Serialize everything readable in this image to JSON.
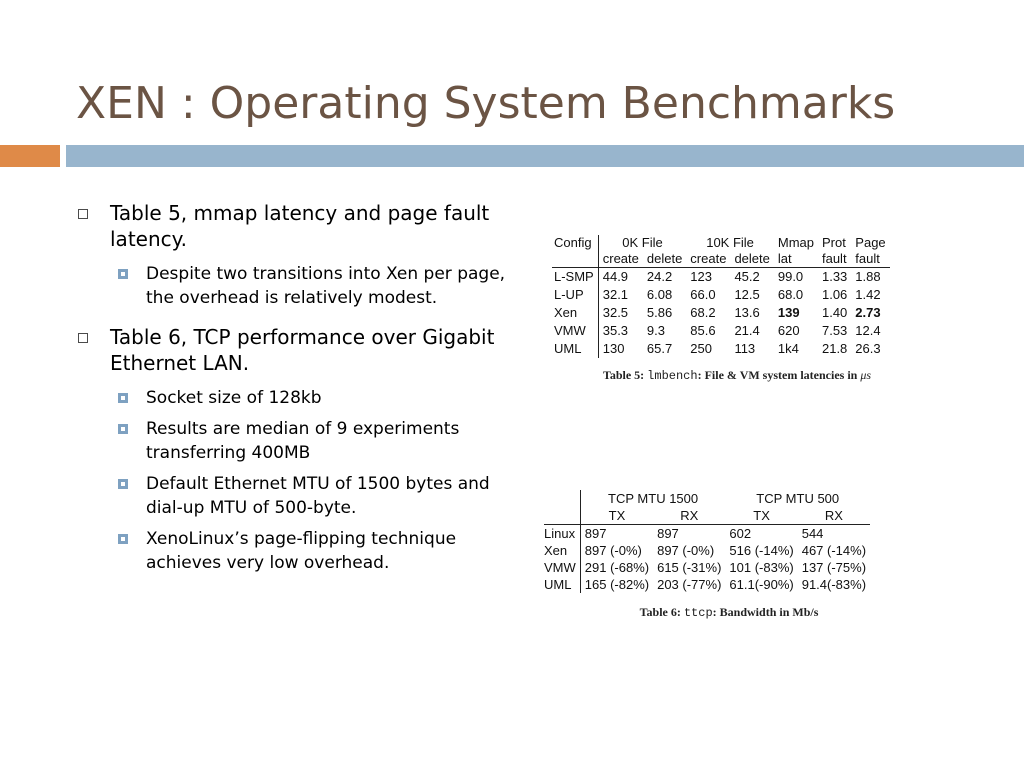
{
  "slide": {
    "title": "XEN : Operating System Benchmarks",
    "accent_orange": "#df8a48",
    "accent_blue": "#98b5cd",
    "title_color": "#6b5444"
  },
  "bullets": [
    {
      "text": "Table 5, mmap latency and page fault latency.",
      "sub": [
        "Despite two transitions into Xen per page, the overhead is relatively modest."
      ]
    },
    {
      "text": "Table 6, TCP performance over Gigabit Ethernet LAN.",
      "sub": [
        "Socket size of 128kb",
        "Results are median of 9 experiments transferring 400MB",
        "Default Ethernet MTU of 1500 bytes and dial-up MTU of 500-byte.",
        "XenoLinux’s page-flipping technique achieves very low overhead."
      ]
    }
  ],
  "table5": {
    "header_top": [
      "Config",
      "0K File",
      "10K File",
      "Mmap",
      "Prot",
      "Page"
    ],
    "header_sub": [
      "create",
      "delete",
      "create",
      "delete",
      "lat",
      "fault",
      "fault"
    ],
    "rows": [
      [
        "L-SMP",
        "44.9",
        "24.2",
        "123",
        "45.2",
        "99.0",
        "1.33",
        "1.88"
      ],
      [
        "L-UP",
        "32.1",
        "6.08",
        "66.0",
        "12.5",
        "68.0",
        "1.06",
        "1.42"
      ],
      [
        "Xen",
        "32.5",
        "5.86",
        "68.2",
        "13.6",
        "139",
        "1.40",
        "2.73"
      ],
      [
        "VMW",
        "35.3",
        "9.3",
        "85.6",
        "21.4",
        "620",
        "7.53",
        "12.4"
      ],
      [
        "UML",
        "130",
        "65.7",
        "250",
        "113",
        "1k4",
        "21.8",
        "26.3"
      ]
    ],
    "caption_prefix": "Table 5:",
    "caption_cmd": "lmbench",
    "caption_rest": ": File & VM system latencies in",
    "caption_unit": "μs"
  },
  "table6": {
    "group_headers": [
      "TCP MTU 1500",
      "TCP MTU 500"
    ],
    "sub_headers": [
      "TX",
      "RX",
      "TX",
      "RX"
    ],
    "rows": [
      [
        "Linux",
        "897",
        "897",
        "602",
        "544"
      ],
      [
        "Xen",
        "897 (-0%)",
        "897 (-0%)",
        "516 (-14%)",
        "467 (-14%)"
      ],
      [
        "VMW",
        "291 (-68%)",
        "615 (-31%)",
        "101 (-83%)",
        "137 (-75%)"
      ],
      [
        "UML",
        "165 (-82%)",
        "203 (-77%)",
        "61.1(-90%)",
        "91.4(-83%)"
      ]
    ],
    "caption_prefix": "Table 6:",
    "caption_cmd": "ttcp",
    "caption_rest": ": Bandwidth in Mb/s"
  }
}
